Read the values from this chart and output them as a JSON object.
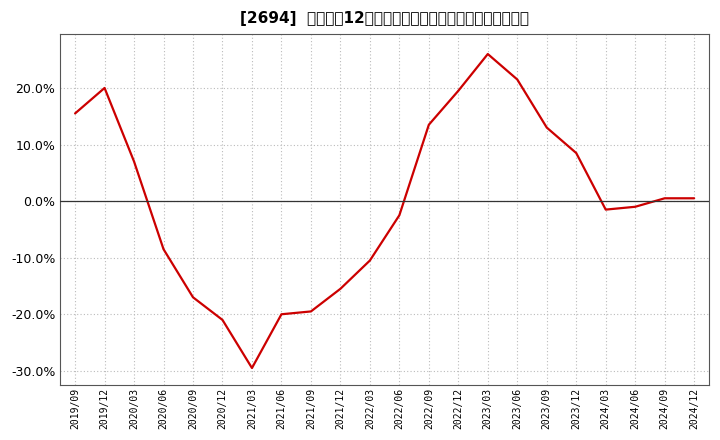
{
  "title": "[2694]  売上高の12か月移動合計の対前年同期増減率の推移",
  "line_color": "#cc0000",
  "background_color": "#ffffff",
  "plot_bg_color": "#ffffff",
  "grid_color": "#bbbbbb",
  "zero_line_color": "#333333",
  "ylim": [
    -0.325,
    0.295
  ],
  "yticks": [
    -0.3,
    -0.2,
    -0.1,
    0.0,
    0.1,
    0.2
  ],
  "dates": [
    "2019/09",
    "2019/12",
    "2020/03",
    "2020/06",
    "2020/09",
    "2020/12",
    "2021/03",
    "2021/06",
    "2021/09",
    "2021/12",
    "2022/03",
    "2022/06",
    "2022/09",
    "2022/12",
    "2023/03",
    "2023/06",
    "2023/09",
    "2023/12",
    "2024/03",
    "2024/06",
    "2024/09",
    "2024/12"
  ],
  "values": [
    0.155,
    0.2,
    0.07,
    -0.085,
    -0.17,
    -0.21,
    -0.295,
    -0.2,
    -0.195,
    -0.155,
    -0.105,
    -0.025,
    0.135,
    0.195,
    0.26,
    0.215,
    0.13,
    0.085,
    -0.015,
    -0.01,
    0.005,
    0.005
  ],
  "title_fontsize": 11,
  "ytick_fontsize": 9,
  "xtick_fontsize": 7,
  "line_width": 1.6
}
